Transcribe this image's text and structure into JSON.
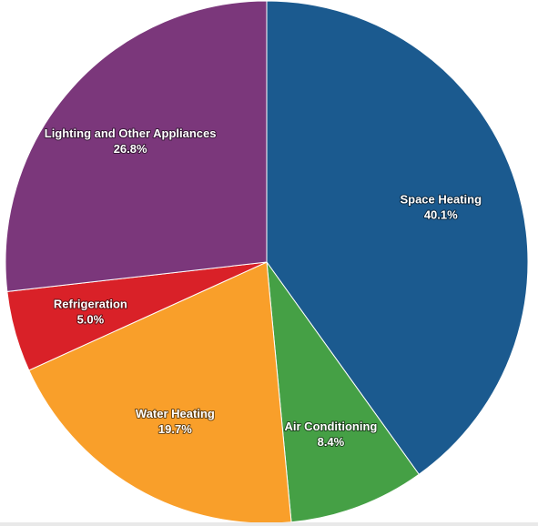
{
  "chart_data": {
    "type": "pie",
    "title": "",
    "start_angle_deg": 0,
    "direction": "clockwise",
    "slices": [
      {
        "label": "Space Heating",
        "value": 40.1,
        "value_label": "40.1%",
        "color": "#1b5a8f"
      },
      {
        "label": "Air Conditioning",
        "value": 8.4,
        "value_label": "8.4%",
        "color": "#45a045"
      },
      {
        "label": "Water Heating",
        "value": 19.7,
        "value_label": "19.7%",
        "color": "#f99f2a"
      },
      {
        "label": "Refrigeration",
        "value": 5.0,
        "value_label": "5.0%",
        "color": "#d92128"
      },
      {
        "label": "Lighting and Other Appliances",
        "value": 26.8,
        "value_label": "26.8%",
        "color": "#7b377b"
      }
    ]
  }
}
